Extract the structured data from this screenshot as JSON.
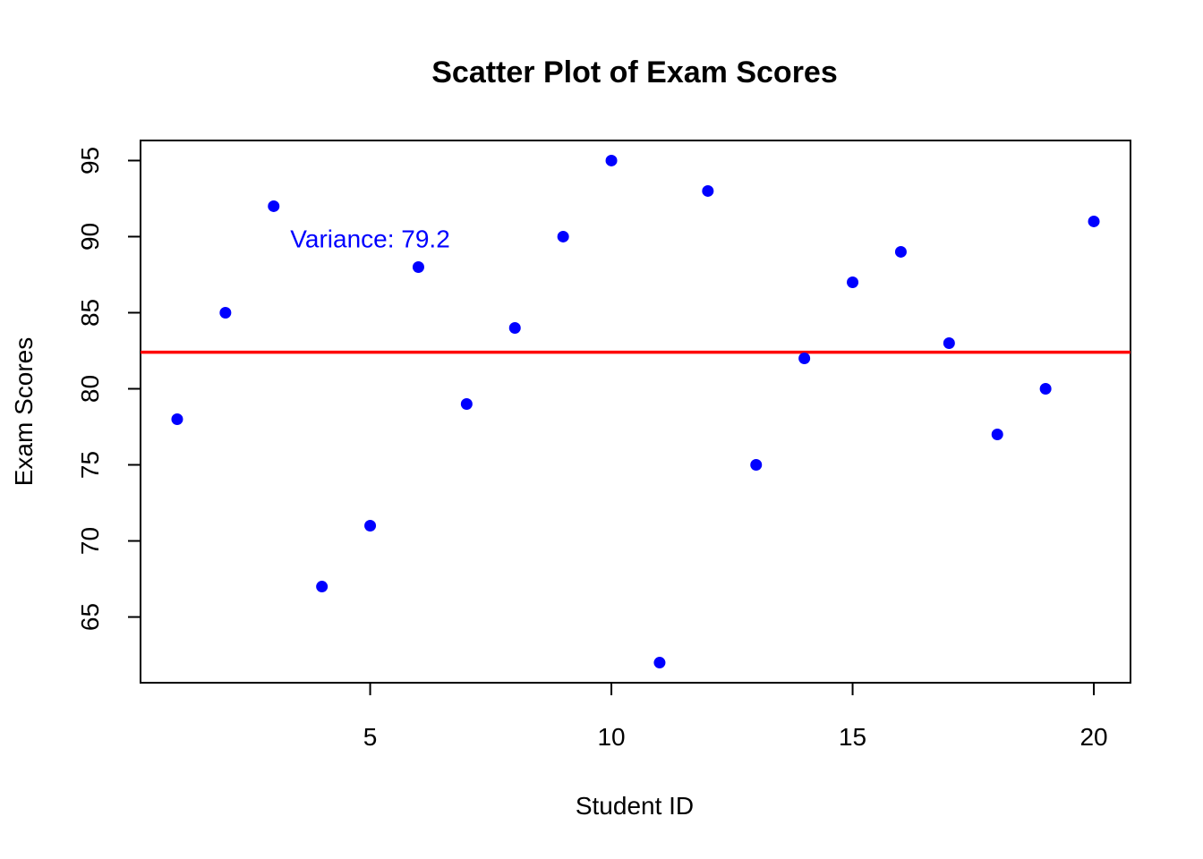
{
  "chart_data": {
    "type": "scatter",
    "title": "Scatter Plot of Exam Scores",
    "xlabel": "Student ID",
    "ylabel": "Exam Scores",
    "x": [
      1,
      2,
      3,
      4,
      5,
      6,
      7,
      8,
      9,
      10,
      11,
      12,
      13,
      14,
      15,
      16,
      17,
      18,
      19,
      20
    ],
    "y": [
      78,
      85,
      92,
      67,
      71,
      88,
      79,
      84,
      90,
      95,
      62,
      93,
      75,
      82,
      87,
      89,
      83,
      77,
      80,
      91
    ],
    "xlim": [
      0.24,
      20.76
    ],
    "ylim": [
      60.68,
      96.32
    ],
    "xticks": [
      5,
      10,
      15,
      20
    ],
    "yticks": [
      65,
      70,
      75,
      80,
      85,
      90,
      95
    ],
    "grid": false,
    "point_color": "#0000ff",
    "mean_line": {
      "y": 82.4,
      "color": "#ff0000"
    },
    "annotation": {
      "text": "Variance: 79.2",
      "x": 5,
      "y": 90,
      "color": "#0000ff"
    }
  }
}
